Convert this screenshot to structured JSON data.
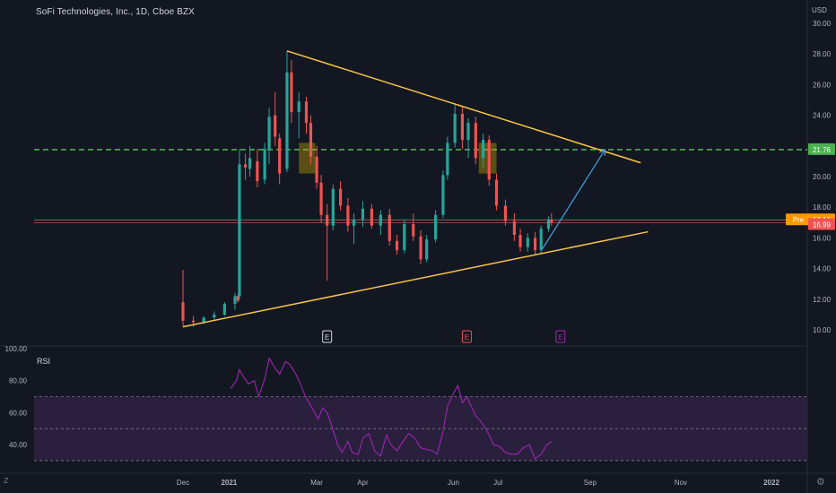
{
  "header": {
    "symbol_title": "SoFi Technologies, Inc., 1D, Cboe BZX",
    "currency": "USD"
  },
  "rsi_pane": {
    "label": "RSI"
  },
  "icons": {
    "logo": "tradingview-logo-icon",
    "settings": "gear-icon"
  },
  "colors": {
    "up": "#26a69a",
    "down": "#ef5350",
    "trendline": "#f7c548",
    "resistance": "#4caf50",
    "projection": "#4a9fe0",
    "rsi_line": "#9c27b0",
    "rsi_band": "#2a1f3d",
    "pre_badge": "#ff9800",
    "last_badge": "#f15353",
    "level_badge": "#4caf50"
  },
  "price_badges": {
    "pre_label": "Pre",
    "pre_value": "17.18",
    "last_value": "16.99",
    "level_value": "21.76"
  },
  "earnings_markers": [
    "E",
    "E",
    "E"
  ],
  "chart_data": [
    {
      "type": "candlestick",
      "title": "SoFi Technologies, Inc., 1D, Cboe BZX",
      "ylabel": "USD",
      "y_ticks": [
        "30.00",
        "28.00",
        "26.00",
        "24.00",
        "22.00",
        "20.00",
        "18.00",
        "16.00",
        "14.00",
        "12.00",
        "10.00"
      ],
      "ylim": [
        9.5,
        30.5
      ],
      "x_ticks": [
        "Dec",
        "2021",
        "Mar",
        "Apr",
        "Jun",
        "Jul",
        "Sep",
        "Nov",
        "2022"
      ],
      "x_tick_dates": [
        "2020-12-01",
        "2021-01-01",
        "2021-03-01",
        "2021-04-01",
        "2021-06-01",
        "2021-07-01",
        "2021-09-01",
        "2021-11-01",
        "2022-01-01"
      ],
      "xlim": [
        "2020-11-01",
        "2022-01-31"
      ],
      "series": [
        {
          "values": [
            [
              "2020-12-01",
              11.8,
              13.9,
              10.2,
              10.6
            ],
            [
              "2020-12-08",
              10.6,
              10.9,
              10.2,
              10.5
            ],
            [
              "2020-12-15",
              10.5,
              10.9,
              10.4,
              10.8
            ],
            [
              "2020-12-22",
              10.8,
              11.2,
              10.6,
              11.0
            ],
            [
              "2020-12-29",
              11.0,
              11.8,
              10.9,
              11.7
            ],
            [
              "2021-01-05",
              11.7,
              12.4,
              11.3,
              12.2
            ],
            [
              "2021-01-07",
              12.2,
              12.3,
              11.8,
              11.9
            ],
            [
              "2021-01-08",
              12.2,
              21.8,
              12.0,
              20.8
            ],
            [
              "2021-01-12",
              20.8,
              21.5,
              19.8,
              20.6
            ],
            [
              "2021-01-15",
              20.5,
              22.0,
              20.0,
              21.2
            ],
            [
              "2021-01-20",
              21.0,
              21.8,
              19.3,
              19.7
            ],
            [
              "2021-01-25",
              19.8,
              22.2,
              19.5,
              21.8
            ],
            [
              "2021-01-28",
              21.8,
              24.5,
              20.8,
              23.9
            ],
            [
              "2021-02-01",
              24.0,
              25.5,
              22.0,
              22.6
            ],
            [
              "2021-02-04",
              22.5,
              22.8,
              19.5,
              20.2
            ],
            [
              "2021-02-09",
              20.5,
              28.2,
              20.3,
              26.8
            ],
            [
              "2021-02-12",
              26.8,
              27.6,
              23.5,
              24.2
            ],
            [
              "2021-02-17",
              24.2,
              25.5,
              22.5,
              24.9
            ],
            [
              "2021-02-22",
              24.9,
              25.2,
              22.8,
              23.5
            ],
            [
              "2021-02-25",
              23.5,
              24.0,
              20.8,
              21.3
            ],
            [
              "2021-03-01",
              21.3,
              22.0,
              19.2,
              19.6
            ],
            [
              "2021-03-04",
              19.6,
              20.1,
              17.0,
              17.5
            ],
            [
              "2021-03-08",
              17.5,
              18.2,
              13.2,
              16.8
            ],
            [
              "2021-03-12",
              16.8,
              19.5,
              16.5,
              19.2
            ],
            [
              "2021-03-17",
              19.2,
              19.7,
              17.8,
              18.1
            ],
            [
              "2021-03-22",
              18.1,
              18.6,
              16.4,
              16.8
            ],
            [
              "2021-03-26",
              16.8,
              17.6,
              15.6,
              17.2
            ],
            [
              "2021-04-01",
              17.2,
              18.4,
              16.7,
              17.9
            ],
            [
              "2021-04-07",
              17.9,
              18.2,
              16.6,
              16.8
            ],
            [
              "2021-04-13",
              16.8,
              17.8,
              16.2,
              17.5
            ],
            [
              "2021-04-19",
              17.5,
              17.9,
              15.5,
              15.8
            ],
            [
              "2021-04-24",
              15.8,
              16.2,
              14.9,
              15.2
            ],
            [
              "2021-04-29",
              15.2,
              17.2,
              15.0,
              16.9
            ],
            [
              "2021-05-05",
              16.9,
              17.6,
              15.8,
              16.1
            ],
            [
              "2021-05-10",
              16.1,
              16.5,
              14.3,
              14.6
            ],
            [
              "2021-05-14",
              14.6,
              16.2,
              14.4,
              15.9
            ],
            [
              "2021-05-20",
              15.9,
              17.8,
              15.7,
              17.5
            ],
            [
              "2021-05-25",
              17.5,
              20.4,
              17.3,
              20.1
            ],
            [
              "2021-05-28",
              20.1,
              22.6,
              19.8,
              22.2
            ],
            [
              "2021-06-02",
              22.2,
              24.8,
              21.9,
              24.1
            ],
            [
              "2021-06-07",
              24.1,
              24.6,
              21.8,
              22.4
            ],
            [
              "2021-06-11",
              22.4,
              23.8,
              21.2,
              23.5
            ],
            [
              "2021-06-16",
              23.5,
              23.9,
              20.8,
              21.2
            ],
            [
              "2021-06-21",
              21.2,
              22.8,
              20.6,
              22.4
            ],
            [
              "2021-06-25",
              22.4,
              22.7,
              19.4,
              19.8
            ],
            [
              "2021-06-30",
              19.8,
              20.2,
              17.8,
              18.1
            ],
            [
              "2021-07-06",
              18.1,
              18.5,
              16.8,
              17.1
            ],
            [
              "2021-07-12",
              17.1,
              17.6,
              15.8,
              16.2
            ],
            [
              "2021-07-16",
              16.2,
              16.6,
              15.1,
              15.4
            ],
            [
              "2021-07-21",
              15.4,
              16.3,
              15.1,
              16.0
            ],
            [
              "2021-07-26",
              16.0,
              16.4,
              14.9,
              15.2
            ],
            [
              "2021-07-30",
              15.2,
              16.8,
              15.0,
              16.6
            ],
            [
              "2021-08-04",
              16.6,
              17.4,
              16.4,
              17.2
            ],
            [
              "2021-08-06",
              17.2,
              17.6,
              16.8,
              16.99
            ]
          ]
        }
      ],
      "annotations": {
        "upper_trendline": {
          "from": [
            "2021-02-09",
            28.2
          ],
          "to": [
            "2021-10-05",
            20.9
          ]
        },
        "lower_trendline": {
          "from": [
            "2020-12-01",
            10.2
          ],
          "to": [
            "2021-10-10",
            16.4
          ]
        },
        "resistance_level": 21.76,
        "highlight_boxes": [
          {
            "from": "2021-02-17",
            "to": "2021-02-28",
            "top": 22.2,
            "bottom": 20.2
          },
          {
            "from": "2021-06-18",
            "to": "2021-06-30",
            "top": 22.2,
            "bottom": 20.2
          }
        ],
        "projection_arrow": {
          "from": [
            "2021-07-31",
            15.3
          ],
          "to": [
            "2021-09-11",
            21.76
          ]
        },
        "earnings_dates": [
          "2021-03-08",
          "2021-06-10",
          "2021-08-12"
        ]
      }
    },
    {
      "type": "line",
      "title": "RSI",
      "y_ticks": [
        "100.00",
        "80.00",
        "60.00",
        "40.00"
      ],
      "ylim": [
        24,
        100
      ],
      "bands": [
        30,
        50,
        70
      ],
      "series": [
        {
          "values": [
            [
              "2021-01-02",
              75
            ],
            [
              "2021-01-06",
              80
            ],
            [
              "2021-01-08",
              87
            ],
            [
              "2021-01-11",
              82
            ],
            [
              "2021-01-14",
              78
            ],
            [
              "2021-01-18",
              80
            ],
            [
              "2021-01-21",
              70
            ],
            [
              "2021-01-25",
              81
            ],
            [
              "2021-01-28",
              94
            ],
            [
              "2021-02-01",
              88
            ],
            [
              "2021-02-04",
              84
            ],
            [
              "2021-02-08",
              92
            ],
            [
              "2021-02-11",
              90
            ],
            [
              "2021-02-15",
              84
            ],
            [
              "2021-02-18",
              78
            ],
            [
              "2021-02-21",
              71
            ],
            [
              "2021-02-24",
              66
            ],
            [
              "2021-02-27",
              61
            ],
            [
              "2021-03-02",
              56
            ],
            [
              "2021-03-05",
              63
            ],
            [
              "2021-03-08",
              60
            ],
            [
              "2021-03-11",
              52
            ],
            [
              "2021-03-15",
              40
            ],
            [
              "2021-03-18",
              35
            ],
            [
              "2021-03-22",
              42
            ],
            [
              "2021-03-25",
              35
            ],
            [
              "2021-03-29",
              34
            ],
            [
              "2021-04-01",
              44
            ],
            [
              "2021-04-05",
              47
            ],
            [
              "2021-04-09",
              36
            ],
            [
              "2021-04-13",
              33
            ],
            [
              "2021-04-17",
              46
            ],
            [
              "2021-04-20",
              40
            ],
            [
              "2021-04-24",
              36
            ],
            [
              "2021-04-28",
              42
            ],
            [
              "2021-05-02",
              47
            ],
            [
              "2021-05-06",
              44
            ],
            [
              "2021-05-10",
              38
            ],
            [
              "2021-05-14",
              37
            ],
            [
              "2021-05-18",
              36
            ],
            [
              "2021-05-21",
              34
            ],
            [
              "2021-05-25",
              48
            ],
            [
              "2021-05-28",
              64
            ],
            [
              "2021-06-01",
              72
            ],
            [
              "2021-06-04",
              77
            ],
            [
              "2021-06-07",
              66
            ],
            [
              "2021-06-10",
              70
            ],
            [
              "2021-06-13",
              64
            ],
            [
              "2021-06-16",
              58
            ],
            [
              "2021-06-19",
              55
            ],
            [
              "2021-06-22",
              51
            ],
            [
              "2021-06-25",
              46
            ],
            [
              "2021-06-28",
              40
            ],
            [
              "2021-07-02",
              39
            ],
            [
              "2021-07-06",
              35
            ],
            [
              "2021-07-10",
              34
            ],
            [
              "2021-07-14",
              34
            ],
            [
              "2021-07-18",
              38
            ],
            [
              "2021-07-22",
              40
            ],
            [
              "2021-07-26",
              31
            ],
            [
              "2021-07-30",
              34
            ],
            [
              "2021-08-03",
              40
            ],
            [
              "2021-08-06",
              42
            ]
          ]
        }
      ]
    }
  ]
}
